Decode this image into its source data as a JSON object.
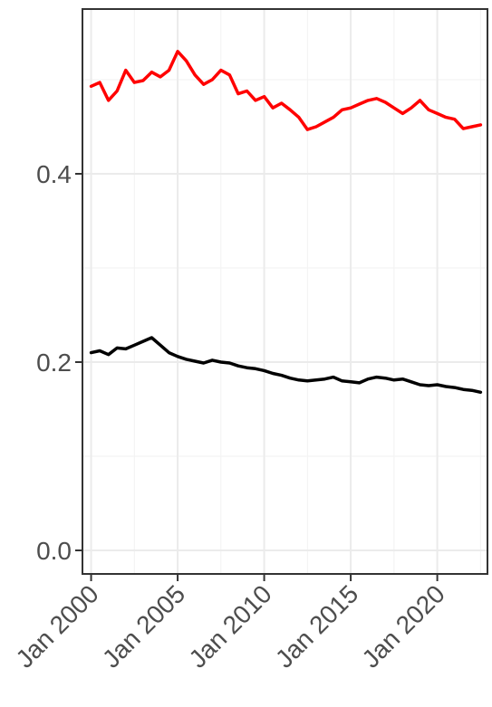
{
  "chart_data": {
    "type": "line",
    "title": "",
    "xlabel": "",
    "ylabel": "",
    "x_tick_labels": [
      "Jan 2000",
      "Jan 2005",
      "Jan 2010",
      "Jan 2015",
      "Jan 2020"
    ],
    "x_tick_years": [
      2000,
      2005,
      2010,
      2015,
      2020
    ],
    "x_range_years": [
      1999.5,
      2022.9
    ],
    "y_tick_labels": [
      "0.0",
      "0.2",
      "0.4"
    ],
    "y_ticks": [
      0.0,
      0.2,
      0.4
    ],
    "ylim": [
      -0.025,
      0.575
    ],
    "grid": true,
    "legend": "none",
    "series": [
      {
        "color": "#ff0000",
        "x": [
          "2000-01",
          "2000-07",
          "2001-01",
          "2001-07",
          "2002-01",
          "2002-07",
          "2003-01",
          "2003-07",
          "2004-01",
          "2004-07",
          "2005-01",
          "2005-07",
          "2006-01",
          "2006-07",
          "2007-01",
          "2007-07",
          "2008-01",
          "2008-07",
          "2009-01",
          "2009-07",
          "2010-01",
          "2010-07",
          "2011-01",
          "2011-07",
          "2012-01",
          "2012-07",
          "2013-01",
          "2013-07",
          "2014-01",
          "2014-07",
          "2015-01",
          "2015-07",
          "2016-01",
          "2016-07",
          "2017-01",
          "2017-07",
          "2018-01",
          "2018-07",
          "2019-01",
          "2019-07",
          "2020-01",
          "2020-07",
          "2021-01",
          "2021-07",
          "2022-01",
          "2022-07"
        ],
        "values": [
          0.493,
          0.497,
          0.478,
          0.488,
          0.51,
          0.497,
          0.499,
          0.508,
          0.503,
          0.51,
          0.53,
          0.52,
          0.505,
          0.495,
          0.5,
          0.51,
          0.505,
          0.485,
          0.488,
          0.478,
          0.482,
          0.47,
          0.475,
          0.468,
          0.46,
          0.447,
          0.45,
          0.455,
          0.46,
          0.468,
          0.47,
          0.474,
          0.478,
          0.48,
          0.476,
          0.47,
          0.464,
          0.47,
          0.478,
          0.468,
          0.464,
          0.46,
          0.458,
          0.448,
          0.45,
          0.452
        ]
      },
      {
        "color": "#000000",
        "x": [
          "2000-01",
          "2000-07",
          "2001-01",
          "2001-07",
          "2002-01",
          "2002-07",
          "2003-01",
          "2003-07",
          "2004-01",
          "2004-07",
          "2005-01",
          "2005-07",
          "2006-01",
          "2006-07",
          "2007-01",
          "2007-07",
          "2008-01",
          "2008-07",
          "2009-01",
          "2009-07",
          "2010-01",
          "2010-07",
          "2011-01",
          "2011-07",
          "2012-01",
          "2012-07",
          "2013-01",
          "2013-07",
          "2014-01",
          "2014-07",
          "2015-01",
          "2015-07",
          "2016-01",
          "2016-07",
          "2017-01",
          "2017-07",
          "2018-01",
          "2018-07",
          "2019-01",
          "2019-07",
          "2020-01",
          "2020-07",
          "2021-01",
          "2021-07",
          "2022-01",
          "2022-07"
        ],
        "values": [
          0.21,
          0.212,
          0.208,
          0.215,
          0.214,
          0.218,
          0.222,
          0.226,
          0.218,
          0.21,
          0.206,
          0.203,
          0.201,
          0.199,
          0.202,
          0.2,
          0.199,
          0.196,
          0.194,
          0.193,
          0.191,
          0.188,
          0.186,
          0.183,
          0.181,
          0.18,
          0.181,
          0.182,
          0.184,
          0.18,
          0.179,
          0.178,
          0.182,
          0.184,
          0.183,
          0.181,
          0.182,
          0.179,
          0.176,
          0.175,
          0.176,
          0.174,
          0.173,
          0.171,
          0.17,
          0.168
        ]
      }
    ]
  }
}
